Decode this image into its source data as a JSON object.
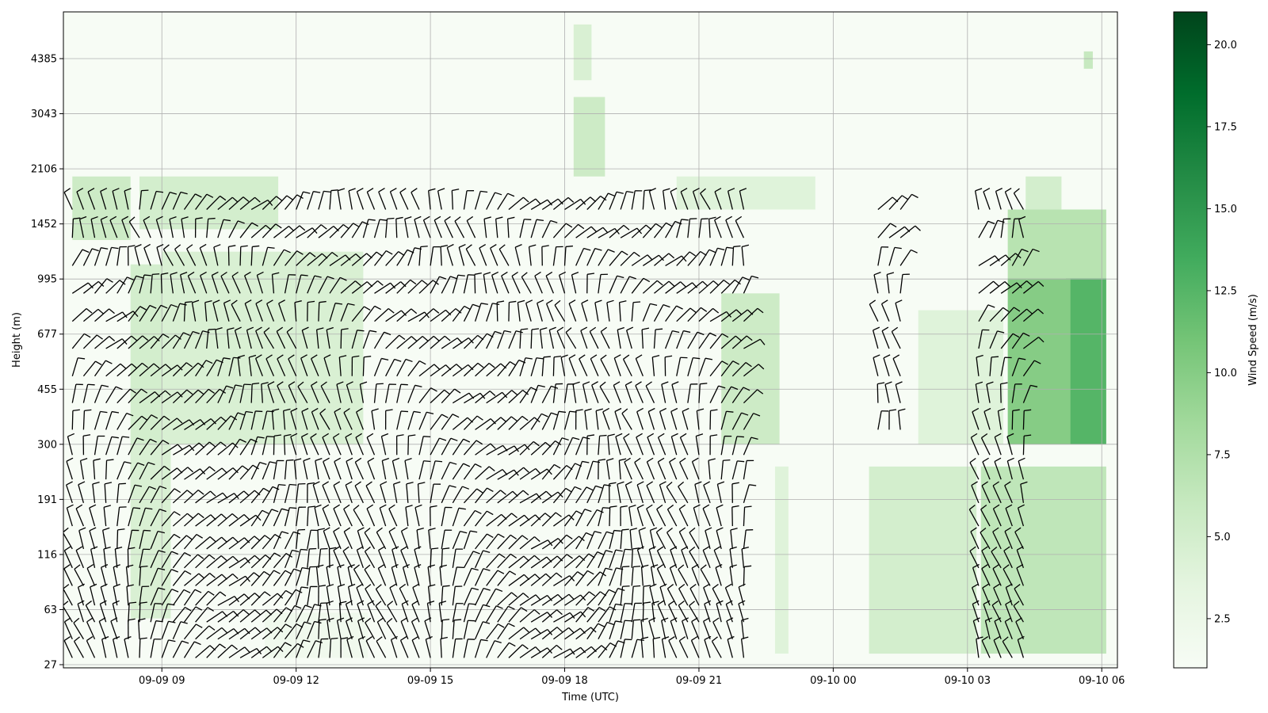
{
  "chart_data": {
    "type": "heatmap",
    "xlabel": "Time (UTC)",
    "ylabel": "Height (m)",
    "colorbar_label": "Wind Speed (m/s)",
    "colormap": "Greens",
    "colorbar_range": [
      1.0,
      21.0
    ],
    "colorbar_ticks": [
      "2.5",
      "5.0",
      "7.5",
      "10.0",
      "12.5",
      "15.0",
      "17.5",
      "20.0"
    ],
    "x_ticks": [
      "09-09 09",
      "09-09 12",
      "09-09 15",
      "09-09 18",
      "09-09 21",
      "09-10 00",
      "09-10 03",
      "09-10 06"
    ],
    "x_range_hours": [
      -2.2,
      21.35
    ],
    "y_ticks": [
      "27",
      "63",
      "116",
      "191",
      "300",
      "455",
      "677",
      "995",
      "1452",
      "2106",
      "3043",
      "4385"
    ],
    "grid": true,
    "overlay": "wind barbs",
    "speed_regions": [
      {
        "x": [
          -2.0,
          -0.7
        ],
        "y": [
          1300,
          2000
        ],
        "speed": 5.5
      },
      {
        "x": [
          -0.5,
          2.6
        ],
        "y": [
          1400,
          2000
        ],
        "speed": 5.0
      },
      {
        "x": [
          -0.7,
          0.0
        ],
        "y": [
          200,
          1100
        ],
        "speed": 5.0
      },
      {
        "x": [
          0.0,
          4.5
        ],
        "y": [
          300,
          1200
        ],
        "speed": 4.5
      },
      {
        "x": [
          2.3,
          4.6
        ],
        "y": [
          30,
          60
        ],
        "speed": 2.0
      },
      {
        "x": [
          -0.7,
          0.2
        ],
        "y": [
          55,
          300
        ],
        "speed": 4.5
      },
      {
        "x": [
          9.2,
          9.9
        ],
        "y": [
          2000,
          3400
        ],
        "speed": 5.5
      },
      {
        "x": [
          9.2,
          9.6
        ],
        "y": [
          3800,
          5500
        ],
        "speed": 4.5
      },
      {
        "x": [
          11.5,
          14.6
        ],
        "y": [
          1600,
          2000
        ],
        "speed": 4.0
      },
      {
        "x": [
          12.5,
          13.8
        ],
        "y": [
          300,
          900
        ],
        "speed": 5.5
      },
      {
        "x": [
          13.7,
          14.0
        ],
        "y": [
          32,
          250
        ],
        "speed": 4.0
      },
      {
        "x": [
          15.8,
          18.2
        ],
        "y": [
          32,
          250
        ],
        "speed": 5.0
      },
      {
        "x": [
          18.3,
          21.1
        ],
        "y": [
          32,
          250
        ],
        "speed": 6.5
      },
      {
        "x": [
          20.2,
          21.1
        ],
        "y": [
          300,
          1000
        ],
        "speed": 12.5
      },
      {
        "x": [
          18.9,
          20.3
        ],
        "y": [
          300,
          1000
        ],
        "speed": 10.0
      },
      {
        "x": [
          18.9,
          21.1
        ],
        "y": [
          1000,
          1600
        ],
        "speed": 7.0
      },
      {
        "x": [
          19.3,
          20.1
        ],
        "y": [
          1600,
          2000
        ],
        "speed": 5.0
      },
      {
        "x": [
          16.9,
          18.8
        ],
        "y": [
          300,
          800
        ],
        "speed": 4.0
      },
      {
        "x": [
          20.6,
          20.8
        ],
        "y": [
          4100,
          4600
        ],
        "speed": 6.0
      }
    ],
    "barb_columns": [
      {
        "x_start": -2.0,
        "x_end": 19.4,
        "step": 0.25,
        "y_min": 30,
        "y_max": 1700
      }
    ],
    "barb_gaps": [
      {
        "x": [
          13.1,
          15.9
        ],
        "y": [
          30,
          2000
        ]
      },
      {
        "x": [
          15.9,
          16.6
        ],
        "y": [
          30,
          310
        ]
      },
      {
        "x": [
          16.7,
          18.1
        ],
        "y": [
          30,
          2000
        ]
      }
    ]
  }
}
